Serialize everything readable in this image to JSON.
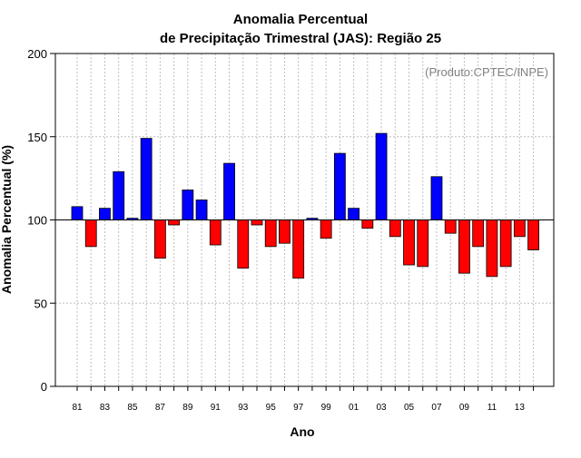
{
  "chart_data": {
    "type": "bar",
    "title_line1": "Anomalia Percentual",
    "title_line2": "de Precipitação Trimestral (JAS): Região 25",
    "xlabel": "Ano",
    "ylabel": "Anomalia Percentual (%)",
    "watermark": "(Produto:CPTEC/INPE)",
    "ylim": [
      0,
      200
    ],
    "yticks": [
      0,
      50,
      100,
      150,
      200
    ],
    "baseline": 100,
    "x_tick_labels": [
      "81",
      "83",
      "85",
      "87",
      "89",
      "91",
      "93",
      "95",
      "97",
      "99",
      "01",
      "03",
      "05",
      "07",
      "09",
      "11",
      "13"
    ],
    "years": [
      "1981",
      "1982",
      "1983",
      "1984",
      "1985",
      "1986",
      "1987",
      "1988",
      "1989",
      "1990",
      "1991",
      "1992",
      "1993",
      "1994",
      "1995",
      "1996",
      "1997",
      "1998",
      "1999",
      "2000",
      "2001",
      "2002",
      "2003",
      "2004",
      "2005",
      "2006",
      "2007",
      "2008",
      "2009",
      "2010",
      "2011",
      "2012",
      "2013",
      "2014"
    ],
    "values": [
      108,
      84,
      107,
      129,
      101,
      149,
      77,
      97,
      118,
      112,
      85,
      134,
      71,
      97,
      84,
      86,
      65,
      101,
      89,
      140,
      107,
      95,
      152,
      90,
      73,
      72,
      126,
      92,
      68,
      84,
      66,
      72,
      90,
      82
    ],
    "grid": true,
    "colors": {
      "above": "#0000ff",
      "below": "#ff0000",
      "grid": "#bfbfbf"
    }
  }
}
